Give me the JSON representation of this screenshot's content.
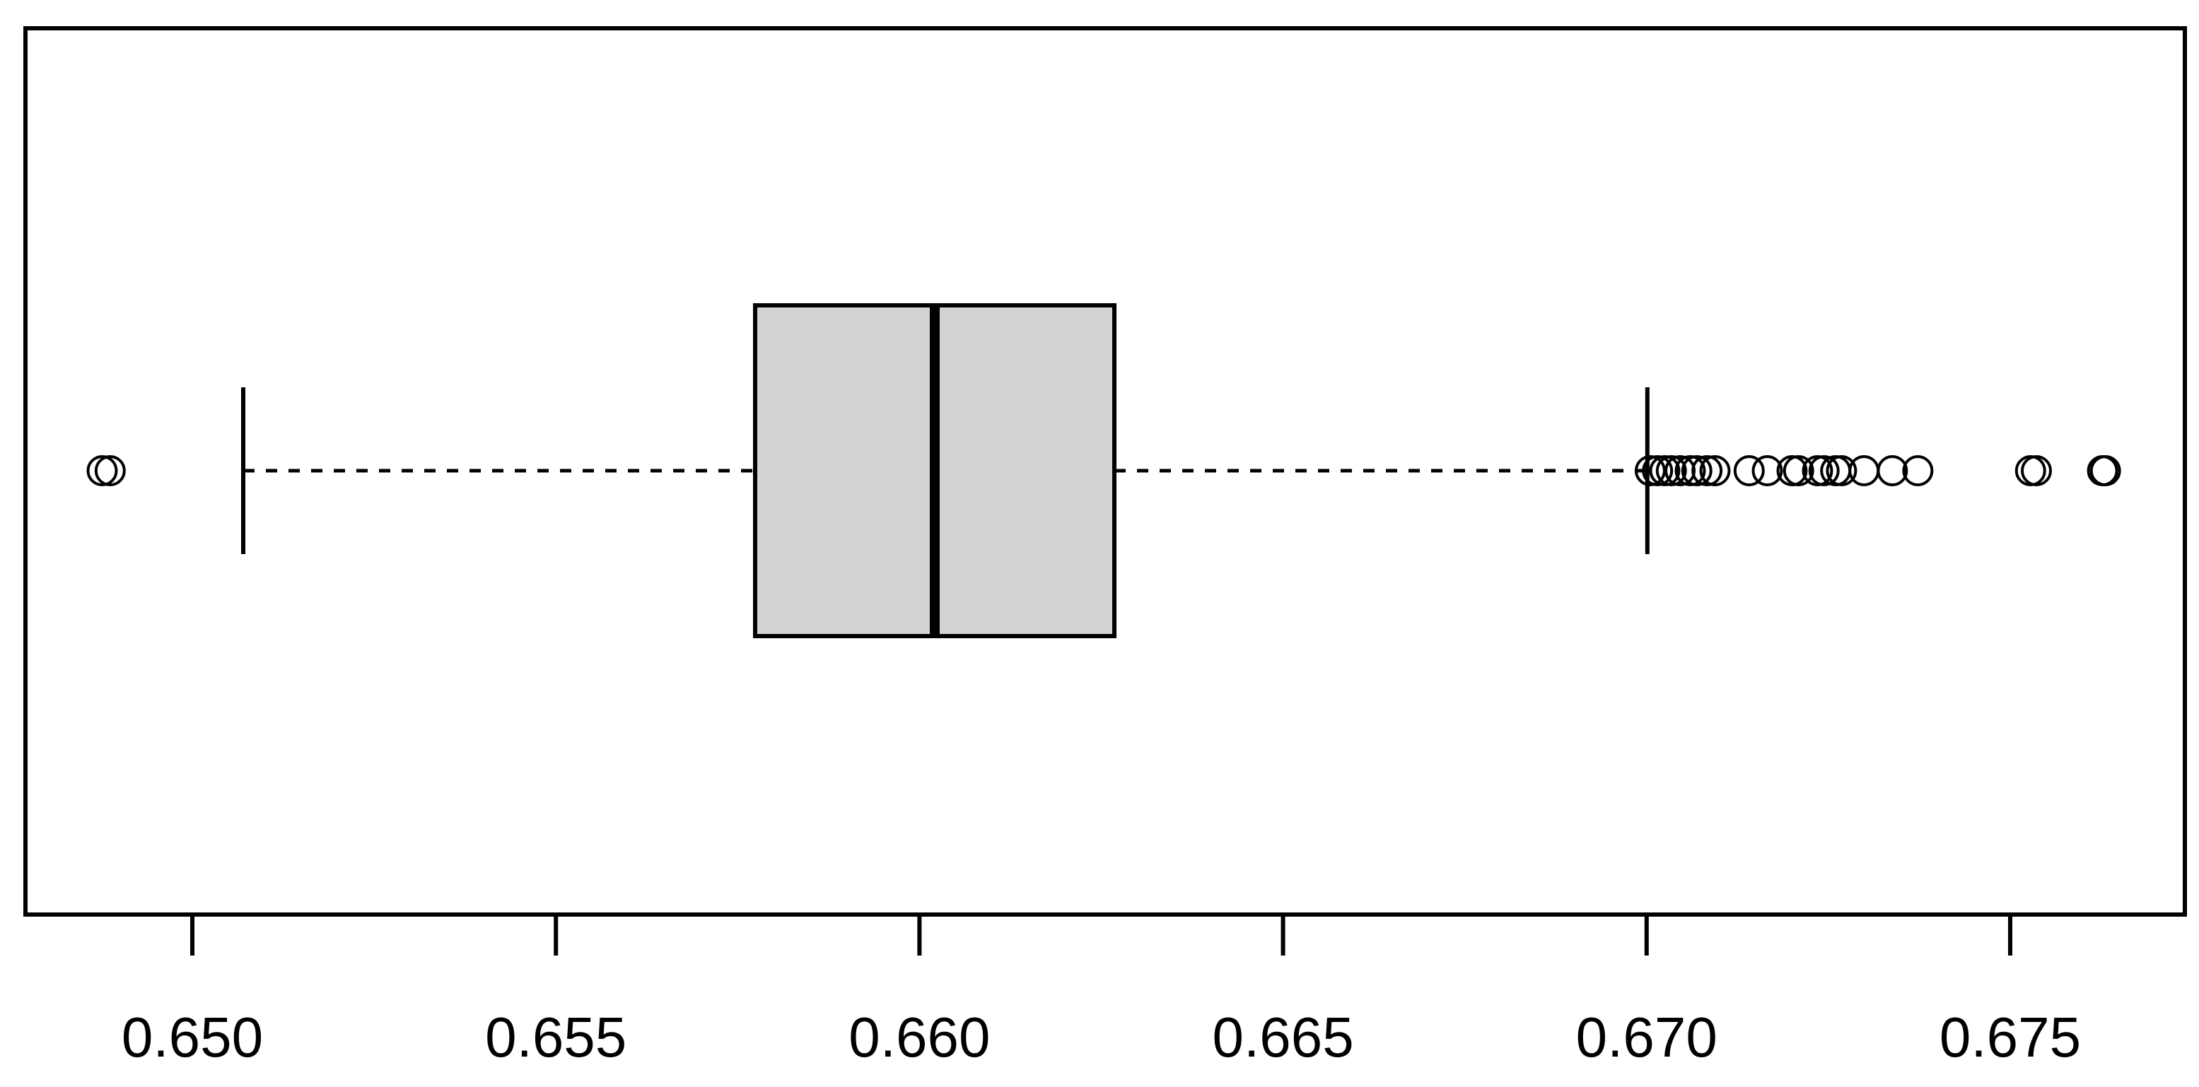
{
  "chart_data": {
    "type": "box",
    "xlim": [
      0.647705,
      0.677402
    ],
    "xticks": [
      {
        "value": 0.65,
        "label": "0.650"
      },
      {
        "value": 0.655,
        "label": "0.655"
      },
      {
        "value": 0.66,
        "label": "0.660"
      },
      {
        "value": 0.665,
        "label": "0.665"
      },
      {
        "value": 0.67,
        "label": "0.670"
      },
      {
        "value": 0.675,
        "label": "0.675"
      }
    ],
    "color": "#d3d3d3",
    "box": {
      "whisker_low": 0.6507,
      "q1": 0.65774,
      "median": 0.66021,
      "q3": 0.66268,
      "whisker_high": 0.67001,
      "outliers": [
        0.64876,
        0.64887,
        0.67005,
        0.67015,
        0.67025,
        0.67034,
        0.67046,
        0.6706,
        0.67069,
        0.67083,
        0.67094,
        0.67141,
        0.67166,
        0.672,
        0.67209,
        0.67235,
        0.67244,
        0.6726,
        0.67268,
        0.67299,
        0.67338,
        0.67373,
        0.67528,
        0.67536,
        0.67627,
        0.67631
      ]
    }
  }
}
